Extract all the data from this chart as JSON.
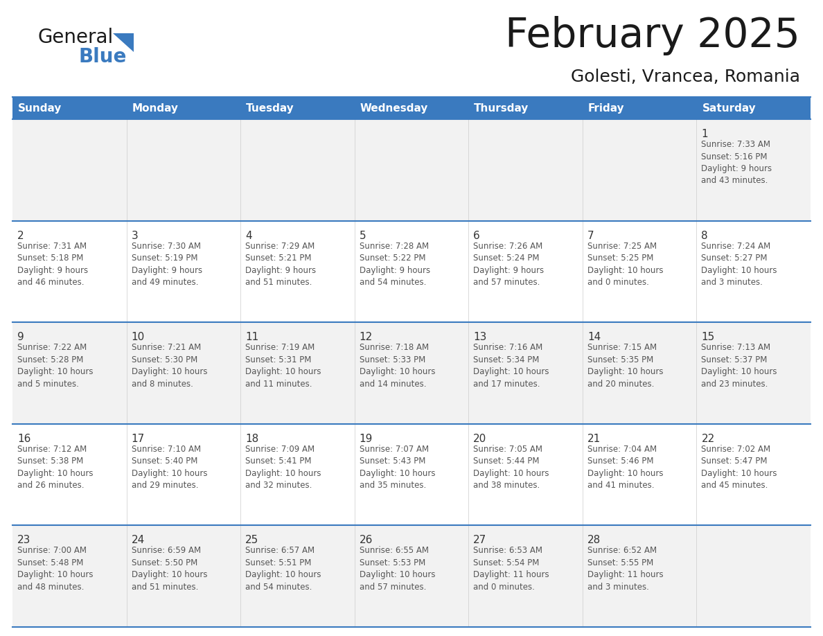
{
  "title": "February 2025",
  "subtitle": "Golesti, Vrancea, Romania",
  "header_bg": "#3a7abf",
  "header_text_color": "#ffffff",
  "row_bg_colors": [
    "#f2f2f2",
    "#ffffff",
    "#f2f2f2",
    "#ffffff",
    "#f2f2f2"
  ],
  "day_number_color": "#333333",
  "text_color": "#555555",
  "grid_line_color": "#3a7abf",
  "days_of_week": [
    "Sunday",
    "Monday",
    "Tuesday",
    "Wednesday",
    "Thursday",
    "Friday",
    "Saturday"
  ],
  "weeks": [
    [
      {
        "day": null,
        "info": null
      },
      {
        "day": null,
        "info": null
      },
      {
        "day": null,
        "info": null
      },
      {
        "day": null,
        "info": null
      },
      {
        "day": null,
        "info": null
      },
      {
        "day": null,
        "info": null
      },
      {
        "day": 1,
        "info": "Sunrise: 7:33 AM\nSunset: 5:16 PM\nDaylight: 9 hours\nand 43 minutes."
      }
    ],
    [
      {
        "day": 2,
        "info": "Sunrise: 7:31 AM\nSunset: 5:18 PM\nDaylight: 9 hours\nand 46 minutes."
      },
      {
        "day": 3,
        "info": "Sunrise: 7:30 AM\nSunset: 5:19 PM\nDaylight: 9 hours\nand 49 minutes."
      },
      {
        "day": 4,
        "info": "Sunrise: 7:29 AM\nSunset: 5:21 PM\nDaylight: 9 hours\nand 51 minutes."
      },
      {
        "day": 5,
        "info": "Sunrise: 7:28 AM\nSunset: 5:22 PM\nDaylight: 9 hours\nand 54 minutes."
      },
      {
        "day": 6,
        "info": "Sunrise: 7:26 AM\nSunset: 5:24 PM\nDaylight: 9 hours\nand 57 minutes."
      },
      {
        "day": 7,
        "info": "Sunrise: 7:25 AM\nSunset: 5:25 PM\nDaylight: 10 hours\nand 0 minutes."
      },
      {
        "day": 8,
        "info": "Sunrise: 7:24 AM\nSunset: 5:27 PM\nDaylight: 10 hours\nand 3 minutes."
      }
    ],
    [
      {
        "day": 9,
        "info": "Sunrise: 7:22 AM\nSunset: 5:28 PM\nDaylight: 10 hours\nand 5 minutes."
      },
      {
        "day": 10,
        "info": "Sunrise: 7:21 AM\nSunset: 5:30 PM\nDaylight: 10 hours\nand 8 minutes."
      },
      {
        "day": 11,
        "info": "Sunrise: 7:19 AM\nSunset: 5:31 PM\nDaylight: 10 hours\nand 11 minutes."
      },
      {
        "day": 12,
        "info": "Sunrise: 7:18 AM\nSunset: 5:33 PM\nDaylight: 10 hours\nand 14 minutes."
      },
      {
        "day": 13,
        "info": "Sunrise: 7:16 AM\nSunset: 5:34 PM\nDaylight: 10 hours\nand 17 minutes."
      },
      {
        "day": 14,
        "info": "Sunrise: 7:15 AM\nSunset: 5:35 PM\nDaylight: 10 hours\nand 20 minutes."
      },
      {
        "day": 15,
        "info": "Sunrise: 7:13 AM\nSunset: 5:37 PM\nDaylight: 10 hours\nand 23 minutes."
      }
    ],
    [
      {
        "day": 16,
        "info": "Sunrise: 7:12 AM\nSunset: 5:38 PM\nDaylight: 10 hours\nand 26 minutes."
      },
      {
        "day": 17,
        "info": "Sunrise: 7:10 AM\nSunset: 5:40 PM\nDaylight: 10 hours\nand 29 minutes."
      },
      {
        "day": 18,
        "info": "Sunrise: 7:09 AM\nSunset: 5:41 PM\nDaylight: 10 hours\nand 32 minutes."
      },
      {
        "day": 19,
        "info": "Sunrise: 7:07 AM\nSunset: 5:43 PM\nDaylight: 10 hours\nand 35 minutes."
      },
      {
        "day": 20,
        "info": "Sunrise: 7:05 AM\nSunset: 5:44 PM\nDaylight: 10 hours\nand 38 minutes."
      },
      {
        "day": 21,
        "info": "Sunrise: 7:04 AM\nSunset: 5:46 PM\nDaylight: 10 hours\nand 41 minutes."
      },
      {
        "day": 22,
        "info": "Sunrise: 7:02 AM\nSunset: 5:47 PM\nDaylight: 10 hours\nand 45 minutes."
      }
    ],
    [
      {
        "day": 23,
        "info": "Sunrise: 7:00 AM\nSunset: 5:48 PM\nDaylight: 10 hours\nand 48 minutes."
      },
      {
        "day": 24,
        "info": "Sunrise: 6:59 AM\nSunset: 5:50 PM\nDaylight: 10 hours\nand 51 minutes."
      },
      {
        "day": 25,
        "info": "Sunrise: 6:57 AM\nSunset: 5:51 PM\nDaylight: 10 hours\nand 54 minutes."
      },
      {
        "day": 26,
        "info": "Sunrise: 6:55 AM\nSunset: 5:53 PM\nDaylight: 10 hours\nand 57 minutes."
      },
      {
        "day": 27,
        "info": "Sunrise: 6:53 AM\nSunset: 5:54 PM\nDaylight: 11 hours\nand 0 minutes."
      },
      {
        "day": 28,
        "info": "Sunrise: 6:52 AM\nSunset: 5:55 PM\nDaylight: 11 hours\nand 3 minutes."
      },
      {
        "day": null,
        "info": null
      }
    ]
  ]
}
